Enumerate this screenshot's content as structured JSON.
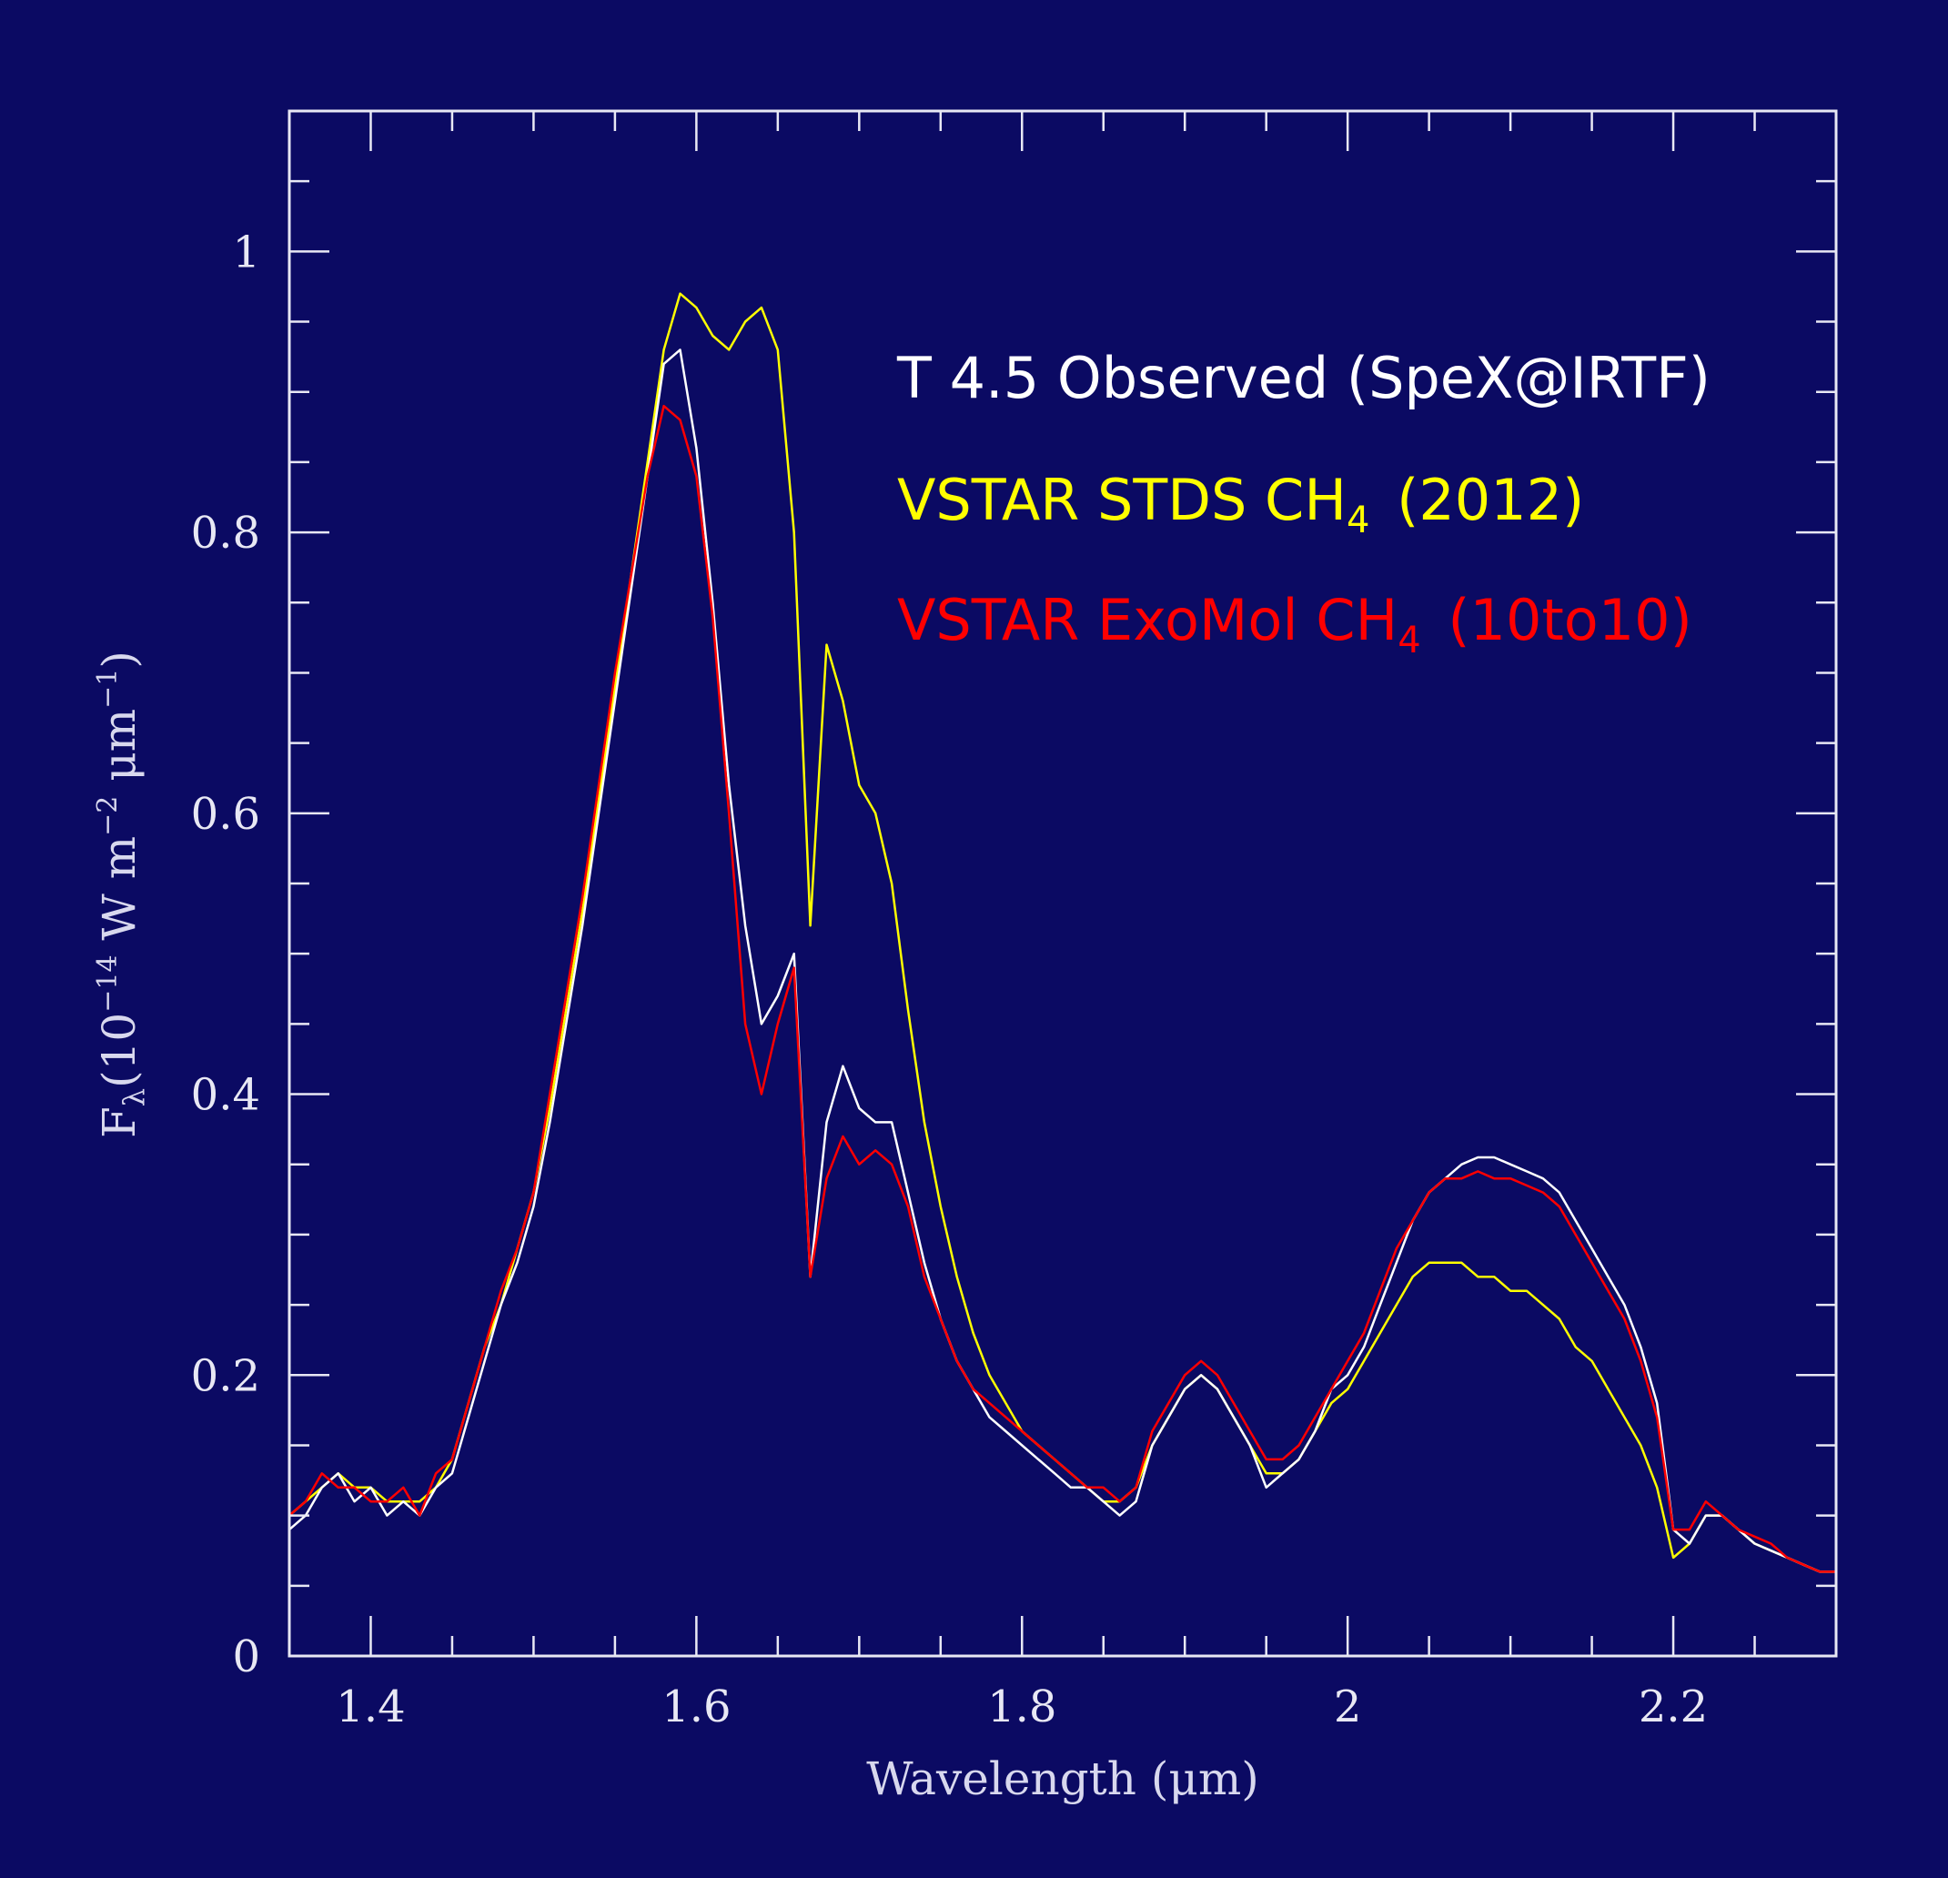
{
  "chart_data": {
    "type": "line",
    "xlabel": "Wavelength (μm)",
    "ylabel_parts": {
      "main": "F",
      "sub": "λ",
      "text1": "(10",
      "exp1": "−14",
      "text2": " W m",
      "exp2": "−2",
      "text3": " μm",
      "exp3": "−1",
      "text4": ")"
    },
    "xlim": [
      1.35,
      2.3
    ],
    "ylim": [
      0,
      1.1
    ],
    "x_major_ticks": [
      1.4,
      1.6,
      1.8,
      2.0,
      2.2
    ],
    "x_tick_labels": [
      "1.4",
      "1.6",
      "1.8",
      "2",
      "2.2"
    ],
    "x_minor_step": 0.05,
    "y_major_ticks": [
      0,
      0.2,
      0.4,
      0.6,
      0.8,
      1.0
    ],
    "y_tick_labels": [
      "0",
      "0.2",
      "0.4",
      "0.6",
      "0.8",
      "1"
    ],
    "y_minor_step": 0.05,
    "grid": false,
    "legend_position": "top-right",
    "x": [
      1.35,
      1.36,
      1.37,
      1.38,
      1.39,
      1.4,
      1.41,
      1.42,
      1.43,
      1.44,
      1.45,
      1.46,
      1.47,
      1.48,
      1.49,
      1.5,
      1.51,
      1.52,
      1.53,
      1.54,
      1.55,
      1.56,
      1.57,
      1.58,
      1.59,
      1.6,
      1.61,
      1.62,
      1.63,
      1.64,
      1.65,
      1.66,
      1.67,
      1.68,
      1.69,
      1.7,
      1.71,
      1.72,
      1.73,
      1.74,
      1.75,
      1.76,
      1.77,
      1.78,
      1.79,
      1.8,
      1.81,
      1.82,
      1.83,
      1.84,
      1.85,
      1.86,
      1.87,
      1.88,
      1.89,
      1.9,
      1.91,
      1.92,
      1.93,
      1.94,
      1.95,
      1.96,
      1.97,
      1.98,
      1.99,
      2.0,
      2.01,
      2.02,
      2.03,
      2.04,
      2.05,
      2.06,
      2.07,
      2.08,
      2.09,
      2.1,
      2.11,
      2.12,
      2.13,
      2.14,
      2.15,
      2.16,
      2.17,
      2.18,
      2.19,
      2.2,
      2.21,
      2.22,
      2.23,
      2.24,
      2.25,
      2.26,
      2.27,
      2.28,
      2.29,
      2.3
    ],
    "series": [
      {
        "name": "T 4.5 Observed (SpeX@IRTF)",
        "color": "#ffffff",
        "label_main": "T 4.5 Observed (SpeX@IRTF)",
        "values": [
          0.09,
          0.1,
          0.12,
          0.13,
          0.11,
          0.12,
          0.1,
          0.11,
          0.1,
          0.12,
          0.13,
          0.17,
          0.21,
          0.25,
          0.28,
          0.32,
          0.38,
          0.45,
          0.52,
          0.6,
          0.68,
          0.76,
          0.84,
          0.92,
          0.93,
          0.86,
          0.75,
          0.62,
          0.52,
          0.45,
          0.47,
          0.5,
          0.27,
          0.38,
          0.42,
          0.39,
          0.38,
          0.38,
          0.33,
          0.28,
          0.24,
          0.21,
          0.19,
          0.17,
          0.16,
          0.15,
          0.14,
          0.13,
          0.12,
          0.12,
          0.11,
          0.1,
          0.11,
          0.15,
          0.17,
          0.19,
          0.2,
          0.19,
          0.17,
          0.15,
          0.12,
          0.13,
          0.14,
          0.16,
          0.19,
          0.2,
          0.22,
          0.25,
          0.28,
          0.31,
          0.33,
          0.34,
          0.35,
          0.355,
          0.355,
          0.35,
          0.345,
          0.34,
          0.33,
          0.31,
          0.29,
          0.27,
          0.25,
          0.22,
          0.18,
          0.09,
          0.08,
          0.1,
          0.1,
          0.09,
          0.08,
          0.075,
          0.07,
          0.065,
          0.06,
          0.06
        ]
      },
      {
        "name": "VSTAR STDS CH4 (2012)",
        "color": "#ffff00",
        "label_main": "VSTAR STDS CH",
        "label_sub": "4",
        "label_tail": " (2012)",
        "values": [
          0.1,
          0.11,
          0.12,
          0.13,
          0.12,
          0.12,
          0.11,
          0.11,
          0.11,
          0.12,
          0.14,
          0.18,
          0.22,
          0.25,
          0.29,
          0.33,
          0.39,
          0.46,
          0.53,
          0.61,
          0.69,
          0.77,
          0.85,
          0.93,
          0.97,
          0.96,
          0.94,
          0.93,
          0.95,
          0.96,
          0.93,
          0.8,
          0.52,
          0.72,
          0.68,
          0.62,
          0.6,
          0.55,
          0.46,
          0.38,
          0.32,
          0.27,
          0.23,
          0.2,
          0.18,
          0.16,
          0.15,
          0.14,
          0.13,
          0.12,
          0.11,
          0.11,
          0.12,
          0.15,
          0.17,
          0.19,
          0.2,
          0.19,
          0.17,
          0.15,
          0.13,
          0.13,
          0.14,
          0.16,
          0.18,
          0.19,
          0.21,
          0.23,
          0.25,
          0.27,
          0.28,
          0.28,
          0.28,
          0.27,
          0.27,
          0.26,
          0.26,
          0.25,
          0.24,
          0.22,
          0.21,
          0.19,
          0.17,
          0.15,
          0.12,
          0.07,
          0.08,
          0.1,
          0.1,
          0.09,
          0.08,
          0.075,
          0.07,
          0.065,
          0.06,
          0.06
        ]
      },
      {
        "name": "VSTAR ExoMol CH4 (10to10)",
        "color": "#ff0000",
        "label_main": "VSTAR ExoMol CH",
        "label_sub": "4",
        "label_tail": " (10to10)",
        "values": [
          0.1,
          0.11,
          0.13,
          0.12,
          0.12,
          0.11,
          0.11,
          0.12,
          0.1,
          0.13,
          0.14,
          0.18,
          0.22,
          0.26,
          0.29,
          0.33,
          0.4,
          0.47,
          0.54,
          0.62,
          0.7,
          0.77,
          0.84,
          0.89,
          0.88,
          0.84,
          0.74,
          0.6,
          0.45,
          0.4,
          0.45,
          0.49,
          0.27,
          0.34,
          0.37,
          0.35,
          0.36,
          0.35,
          0.32,
          0.27,
          0.24,
          0.21,
          0.19,
          0.18,
          0.17,
          0.16,
          0.15,
          0.14,
          0.13,
          0.12,
          0.12,
          0.11,
          0.12,
          0.16,
          0.18,
          0.2,
          0.21,
          0.2,
          0.18,
          0.16,
          0.14,
          0.14,
          0.15,
          0.17,
          0.19,
          0.21,
          0.23,
          0.26,
          0.29,
          0.31,
          0.33,
          0.34,
          0.34,
          0.345,
          0.34,
          0.34,
          0.335,
          0.33,
          0.32,
          0.3,
          0.28,
          0.26,
          0.24,
          0.21,
          0.17,
          0.09,
          0.09,
          0.11,
          0.1,
          0.09,
          0.085,
          0.08,
          0.07,
          0.065,
          0.06,
          0.06
        ]
      }
    ]
  }
}
